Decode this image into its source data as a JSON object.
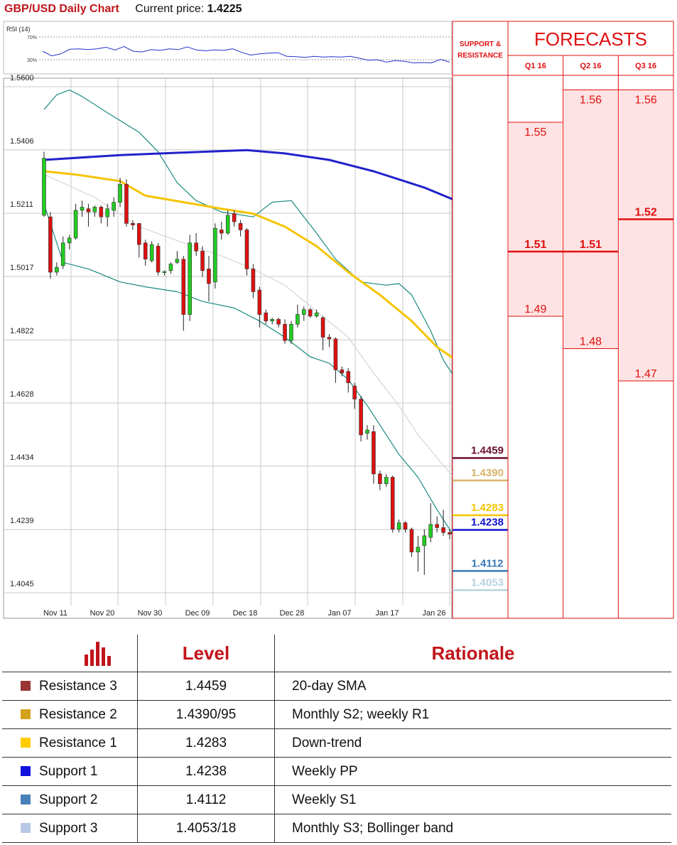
{
  "header": {
    "title": "GBP/USD Daily Chart",
    "current_price_label": "Current price:",
    "current_price": "1.4225"
  },
  "colors": {
    "up": "#22cc22",
    "down": "#dd1111",
    "sma_blue": "#2222cc",
    "sma_yellow": "#f5c400",
    "band": "#1a8a80",
    "red": "#e01010",
    "grid": "#c8c8c8"
  },
  "chart_data": {
    "type": "candlestick",
    "ylim": [
      1.4045,
      1.56
    ],
    "y_ticks": [
      "1.5600",
      "1.5406",
      "1.5211",
      "1.5017",
      "1.4822",
      "1.4628",
      "1.4434",
      "1.4239",
      "1.4045"
    ],
    "x_ticks": [
      "Nov 11",
      "Nov 20",
      "Nov 30",
      "Dec 09",
      "Dec 18",
      "Dec 28",
      "Jan 07",
      "Jan 17",
      "Jan 26"
    ],
    "candles": [
      {
        "o": 1.5205,
        "h": 1.54,
        "l": 1.52,
        "c": 1.538
      },
      {
        "o": 1.52,
        "h": 1.5215,
        "l": 1.501,
        "c": 1.503
      },
      {
        "o": 1.503,
        "h": 1.506,
        "l": 1.502,
        "c": 1.5045
      },
      {
        "o": 1.505,
        "h": 1.514,
        "l": 1.504,
        "c": 1.512
      },
      {
        "o": 1.512,
        "h": 1.5145,
        "l": 1.51,
        "c": 1.5135
      },
      {
        "o": 1.5135,
        "h": 1.524,
        "l": 1.513,
        "c": 1.522
      },
      {
        "o": 1.522,
        "h": 1.525,
        "l": 1.52,
        "c": 1.523
      },
      {
        "o": 1.5225,
        "h": 1.524,
        "l": 1.517,
        "c": 1.5215
      },
      {
        "o": 1.5215,
        "h": 1.5235,
        "l": 1.52,
        "c": 1.523
      },
      {
        "o": 1.523,
        "h": 1.5235,
        "l": 1.518,
        "c": 1.52
      },
      {
        "o": 1.52,
        "h": 1.524,
        "l": 1.517,
        "c": 1.5225
      },
      {
        "o": 1.522,
        "h": 1.526,
        "l": 1.52,
        "c": 1.5245
      },
      {
        "o": 1.5245,
        "h": 1.532,
        "l": 1.523,
        "c": 1.53
      },
      {
        "o": 1.53,
        "h": 1.5315,
        "l": 1.517,
        "c": 1.518
      },
      {
        "o": 1.518,
        "h": 1.519,
        "l": 1.516,
        "c": 1.5175
      },
      {
        "o": 1.518,
        "h": 1.518,
        "l": 1.5075,
        "c": 1.5115
      },
      {
        "o": 1.512,
        "h": 1.513,
        "l": 1.505,
        "c": 1.507
      },
      {
        "o": 1.5065,
        "h": 1.5125,
        "l": 1.506,
        "c": 1.5115
      },
      {
        "o": 1.511,
        "h": 1.512,
        "l": 1.502,
        "c": 1.503
      },
      {
        "o": 1.503,
        "h": 1.5035,
        "l": 1.502,
        "c": 1.5032
      },
      {
        "o": 1.5035,
        "h": 1.506,
        "l": 1.5025,
        "c": 1.5055
      },
      {
        "o": 1.506,
        "h": 1.5095,
        "l": 1.5055,
        "c": 1.507
      },
      {
        "o": 1.507,
        "h": 1.508,
        "l": 1.485,
        "c": 1.49
      },
      {
        "o": 1.49,
        "h": 1.5145,
        "l": 1.488,
        "c": 1.512
      },
      {
        "o": 1.512,
        "h": 1.515,
        "l": 1.508,
        "c": 1.5095
      },
      {
        "o": 1.5095,
        "h": 1.511,
        "l": 1.5015,
        "c": 1.5035
      },
      {
        "o": 1.504,
        "h": 1.508,
        "l": 1.494,
        "c": 1.4995
      },
      {
        "o": 1.5,
        "h": 1.518,
        "l": 1.498,
        "c": 1.5165
      },
      {
        "o": 1.516,
        "h": 1.5185,
        "l": 1.513,
        "c": 1.515
      },
      {
        "o": 1.515,
        "h": 1.522,
        "l": 1.5145,
        "c": 1.5205
      },
      {
        "o": 1.521,
        "h": 1.522,
        "l": 1.517,
        "c": 1.5185
      },
      {
        "o": 1.518,
        "h": 1.519,
        "l": 1.514,
        "c": 1.516
      },
      {
        "o": 1.516,
        "h": 1.5165,
        "l": 1.502,
        "c": 1.504
      },
      {
        "o": 1.504,
        "h": 1.5055,
        "l": 1.495,
        "c": 1.497
      },
      {
        "o": 1.4975,
        "h": 1.4985,
        "l": 1.486,
        "c": 1.49
      },
      {
        "o": 1.4905,
        "h": 1.4915,
        "l": 1.487,
        "c": 1.488
      },
      {
        "o": 1.488,
        "h": 1.489,
        "l": 1.487,
        "c": 1.4885
      },
      {
        "o": 1.4885,
        "h": 1.489,
        "l": 1.486,
        "c": 1.487
      },
      {
        "o": 1.487,
        "h": 1.4885,
        "l": 1.481,
        "c": 1.482
      },
      {
        "o": 1.482,
        "h": 1.488,
        "l": 1.481,
        "c": 1.487
      },
      {
        "o": 1.487,
        "h": 1.493,
        "l": 1.486,
        "c": 1.49
      },
      {
        "o": 1.49,
        "h": 1.4925,
        "l": 1.488,
        "c": 1.4915
      },
      {
        "o": 1.4915,
        "h": 1.492,
        "l": 1.489,
        "c": 1.4895
      },
      {
        "o": 1.4895,
        "h": 1.4915,
        "l": 1.489,
        "c": 1.4905
      },
      {
        "o": 1.489,
        "h": 1.4895,
        "l": 1.479,
        "c": 1.483
      },
      {
        "o": 1.483,
        "h": 1.484,
        "l": 1.48,
        "c": 1.4825
      },
      {
        "o": 1.4825,
        "h": 1.483,
        "l": 1.469,
        "c": 1.473
      },
      {
        "o": 1.473,
        "h": 1.474,
        "l": 1.471,
        "c": 1.472
      },
      {
        "o": 1.4725,
        "h": 1.4735,
        "l": 1.466,
        "c": 1.469
      },
      {
        "o": 1.468,
        "h": 1.469,
        "l": 1.461,
        "c": 1.464
      },
      {
        "o": 1.464,
        "h": 1.465,
        "l": 1.451,
        "c": 1.453
      },
      {
        "o": 1.4535,
        "h": 1.456,
        "l": 1.4515,
        "c": 1.4545
      },
      {
        "o": 1.454,
        "h": 1.456,
        "l": 1.438,
        "c": 1.441
      },
      {
        "o": 1.441,
        "h": 1.442,
        "l": 1.436,
        "c": 1.438
      },
      {
        "o": 1.438,
        "h": 1.441,
        "l": 1.437,
        "c": 1.44
      },
      {
        "o": 1.44,
        "h": 1.4405,
        "l": 1.423,
        "c": 1.424
      },
      {
        "o": 1.424,
        "h": 1.427,
        "l": 1.423,
        "c": 1.426
      },
      {
        "o": 1.426,
        "h": 1.4265,
        "l": 1.423,
        "c": 1.424
      },
      {
        "o": 1.424,
        "h": 1.4245,
        "l": 1.4155,
        "c": 1.417
      },
      {
        "o": 1.417,
        "h": 1.422,
        "l": 1.411,
        "c": 1.4185
      },
      {
        "o": 1.419,
        "h": 1.424,
        "l": 1.41,
        "c": 1.422
      },
      {
        "o": 1.4215,
        "h": 1.432,
        "l": 1.42,
        "c": 1.4255
      },
      {
        "o": 1.4255,
        "h": 1.428,
        "l": 1.423,
        "c": 1.4245
      },
      {
        "o": 1.4245,
        "h": 1.43,
        "l": 1.422,
        "c": 1.423
      },
      {
        "o": 1.423,
        "h": 1.424,
        "l": 1.421,
        "c": 1.4225
      }
    ],
    "sma_blue": [
      [
        0,
        1.5375
      ],
      [
        12,
        1.539
      ],
      [
        25,
        1.54
      ],
      [
        32,
        1.5405
      ],
      [
        38,
        1.5395
      ],
      [
        45,
        1.5375
      ],
      [
        52,
        1.534
      ],
      [
        60,
        1.529
      ],
      [
        65,
        1.525
      ]
    ],
    "sma_yellow": [
      [
        0,
        1.534
      ],
      [
        5,
        1.533
      ],
      [
        12,
        1.531
      ],
      [
        16,
        1.5265
      ],
      [
        22,
        1.5245
      ],
      [
        28,
        1.5225
      ],
      [
        33,
        1.521
      ],
      [
        38,
        1.517
      ],
      [
        43,
        1.511
      ],
      [
        48,
        1.503
      ],
      [
        53,
        1.496
      ],
      [
        58,
        1.488
      ],
      [
        62,
        1.48
      ],
      [
        65,
        1.476
      ]
    ],
    "band_upper": [
      [
        0,
        1.553
      ],
      [
        2,
        1.5575
      ],
      [
        4,
        1.559
      ],
      [
        6,
        1.557
      ],
      [
        10,
        1.552
      ],
      [
        15,
        1.546
      ],
      [
        18,
        1.54
      ],
      [
        21,
        1.5305
      ],
      [
        24,
        1.525
      ],
      [
        28,
        1.5215
      ],
      [
        33,
        1.52
      ],
      [
        36,
        1.5245
      ],
      [
        39,
        1.525
      ],
      [
        43,
        1.515
      ],
      [
        46,
        1.507
      ],
      [
        50,
        1.5
      ],
      [
        54,
        1.499
      ],
      [
        56,
        1.4995
      ],
      [
        58,
        1.496
      ],
      [
        61,
        1.485
      ],
      [
        63,
        1.476
      ],
      [
        65,
        1.47
      ]
    ],
    "band_lower": [
      [
        0,
        1.524
      ],
      [
        3,
        1.506
      ],
      [
        7,
        1.504
      ],
      [
        12,
        1.5
      ],
      [
        16,
        1.4985
      ],
      [
        21,
        1.497
      ],
      [
        25,
        1.494
      ],
      [
        30,
        1.492
      ],
      [
        34,
        1.488
      ],
      [
        38,
        1.483
      ],
      [
        42,
        1.477
      ],
      [
        45,
        1.475
      ],
      [
        48,
        1.47
      ],
      [
        51,
        1.462
      ],
      [
        53,
        1.456
      ],
      [
        56,
        1.447
      ],
      [
        59,
        1.44
      ],
      [
        62,
        1.43
      ],
      [
        65,
        1.421
      ]
    ],
    "middle_line": [
      [
        0,
        1.533
      ],
      [
        8,
        1.526
      ],
      [
        15,
        1.517
      ],
      [
        22,
        1.512
      ],
      [
        28,
        1.508
      ],
      [
        33,
        1.504
      ],
      [
        38,
        1.499
      ],
      [
        43,
        1.491
      ],
      [
        48,
        1.483
      ],
      [
        52,
        1.472
      ],
      [
        56,
        1.462
      ],
      [
        59,
        1.453
      ],
      [
        62,
        1.446
      ],
      [
        65,
        1.439
      ]
    ],
    "rsi": {
      "title": "RSI (14)",
      "levels": [
        "70%",
        "30%"
      ],
      "values": [
        40,
        28,
        33,
        45,
        46,
        44,
        46,
        50,
        43,
        52,
        40,
        38,
        44,
        42,
        46,
        44,
        51,
        43,
        41,
        43,
        42,
        46,
        37,
        30,
        33,
        35,
        36,
        27,
        26,
        24,
        27,
        25,
        26,
        25,
        27,
        22,
        17,
        18,
        12,
        16,
        14,
        10,
        11,
        10,
        19,
        12
      ]
    },
    "levels": [
      {
        "value": 1.4459,
        "label": "1.4459",
        "color": "#6b0f2e"
      },
      {
        "value": 1.439,
        "label": "1.4390",
        "color": "#d8b36a"
      },
      {
        "value": 1.4283,
        "label": "1.4283",
        "color": "#f5c400"
      },
      {
        "value": 1.4238,
        "label": "1.4238",
        "color": "#1111cc"
      },
      {
        "value": 1.4112,
        "label": "1.4112",
        "color": "#3a78b8"
      },
      {
        "value": 1.4053,
        "label": "1.4053",
        "color": "#b8d2de"
      }
    ]
  },
  "forecasts": {
    "support_resistance_label": [
      "SUPPORT &",
      "RESISTANCE"
    ],
    "title": "FORECASTS",
    "quarters": [
      {
        "label": "Q1 16",
        "high": 1.55,
        "high_label": "1.55",
        "mid": 1.51,
        "mid_label": "1.51",
        "low": 1.49,
        "low_label": "1.49"
      },
      {
        "label": "Q2 16",
        "high": 1.56,
        "high_label": "1.56",
        "mid": 1.51,
        "mid_label": "1.51",
        "low": 1.48,
        "low_label": "1.48"
      },
      {
        "label": "Q3 16",
        "high": 1.56,
        "high_label": "1.56",
        "mid": 1.52,
        "mid_label": "1.52",
        "low": 1.47,
        "low_label": "1.47"
      }
    ]
  },
  "table": {
    "headers": {
      "level": "Level",
      "rationale": "Rationale"
    },
    "rows": [
      {
        "name": "Resistance 3",
        "level": "1.4459",
        "rationale": "20-day SMA",
        "color": "#9b3535"
      },
      {
        "name": "Resistance 2",
        "level": "1.4390/95",
        "rationale": "Monthly S2; weekly R1",
        "color": "#d4a11c"
      },
      {
        "name": "Resistance 1",
        "level": "1.4283",
        "rationale": "Down-trend",
        "color": "#ffcc00"
      },
      {
        "name": "Support 1",
        "level": "1.4238",
        "rationale": "Weekly PP",
        "color": "#1111dd"
      },
      {
        "name": "Support 2",
        "level": "1.4112",
        "rationale": "Weekly S1",
        "color": "#4a80b8"
      },
      {
        "name": "Support 3",
        "level": "1.4053/18",
        "rationale": "Monthly S3; Bollinger band",
        "color": "#b8c8e6"
      }
    ]
  }
}
